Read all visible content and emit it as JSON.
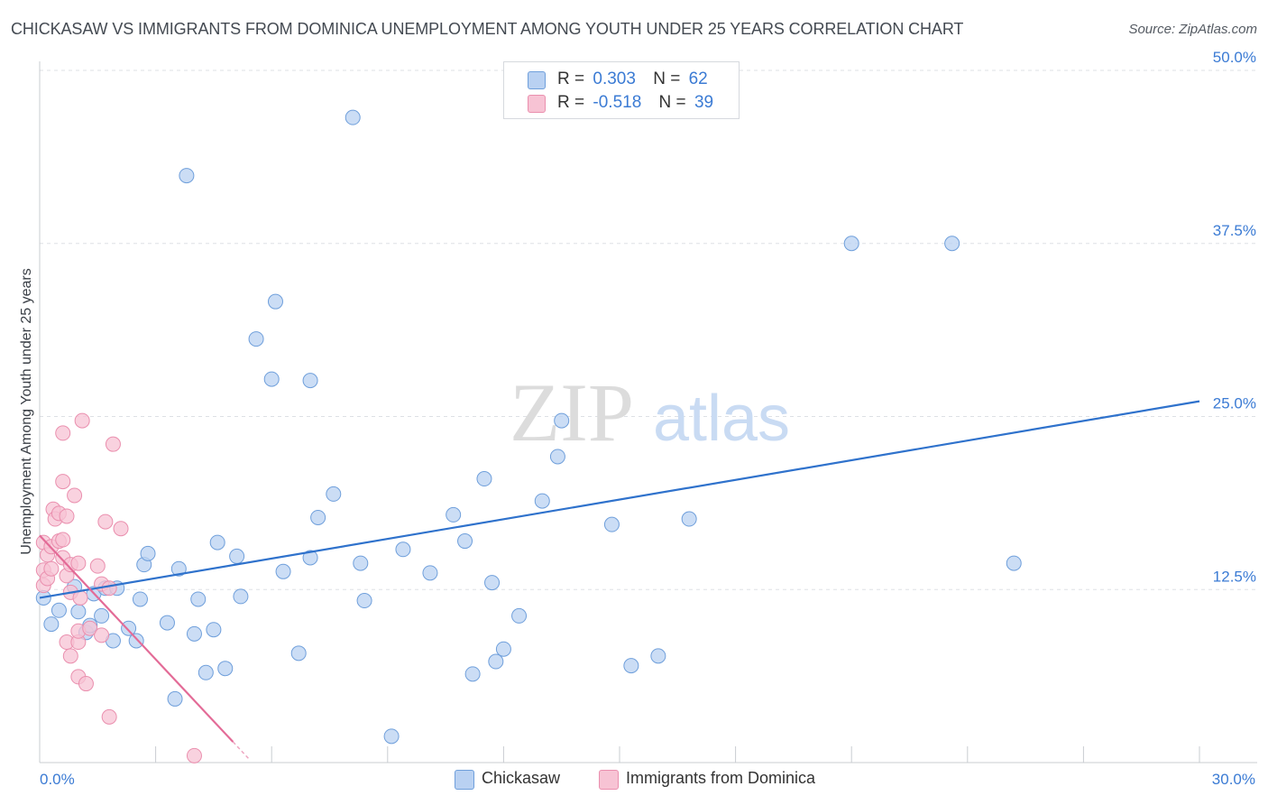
{
  "title": "CHICKASAW VS IMMIGRANTS FROM DOMINICA UNEMPLOYMENT AMONG YOUTH UNDER 25 YEARS CORRELATION CHART",
  "source": "Source: ZipAtlas.com",
  "watermark": {
    "zip": "ZIP",
    "atlas": "atlas"
  },
  "legend": {
    "series1": {
      "r_label": "R =",
      "r_value": "0.303",
      "n_label": "N =",
      "n_value": "62"
    },
    "series2": {
      "r_label": "R =",
      "r_value": "-0.518",
      "n_label": "N =",
      "n_value": "39"
    }
  },
  "bottom_legend": {
    "series1": "Chickasaw",
    "series2": "Immigrants from Dominica"
  },
  "chart_data": {
    "type": "scatter",
    "title": "CHICKASAW VS IMMIGRANTS FROM DOMINICA UNEMPLOYMENT AMONG YOUTH UNDER 25 YEARS CORRELATION CHART",
    "xlabel": "",
    "ylabel": "Unemployment Among Youth under 25 years",
    "xlim": [
      0,
      30
    ],
    "ylim": [
      0,
      50
    ],
    "x_tick_labels": [
      {
        "value": 0,
        "label": "0.0%"
      },
      {
        "value": 30,
        "label": "30.0%"
      }
    ],
    "y_tick_labels": [
      {
        "value": 12.5,
        "label": "12.5%"
      },
      {
        "value": 25,
        "label": "25.0%"
      },
      {
        "value": 37.5,
        "label": "37.5%"
      },
      {
        "value": 50,
        "label": "50.0%"
      }
    ],
    "grid": true,
    "colors": {
      "series1_fill": "#b9d1f2",
      "series1_stroke": "#6f9fdb",
      "series1_line": "#2f72cc",
      "series2_fill": "#f7c3d4",
      "series2_stroke": "#ea8fae",
      "series2_line": "#e36b97",
      "axis_text": "#3b7bd4",
      "grid": "#dde0e5"
    },
    "series": [
      {
        "name": "Chickasaw",
        "r": 0.303,
        "n": 62,
        "trend": {
          "x": [
            0,
            30
          ],
          "y": [
            11.9,
            26.1
          ]
        },
        "points": [
          [
            0.1,
            11.9
          ],
          [
            0.3,
            10.0
          ],
          [
            0.5,
            11.0
          ],
          [
            0.9,
            12.7
          ],
          [
            1.0,
            10.9
          ],
          [
            1.2,
            9.4
          ],
          [
            1.3,
            9.9
          ],
          [
            1.4,
            12.2
          ],
          [
            1.6,
            10.6
          ],
          [
            1.7,
            12.6
          ],
          [
            1.9,
            8.8
          ],
          [
            2.0,
            12.6
          ],
          [
            2.3,
            9.7
          ],
          [
            2.5,
            8.8
          ],
          [
            2.6,
            11.8
          ],
          [
            2.7,
            14.3
          ],
          [
            2.8,
            15.1
          ],
          [
            3.3,
            10.1
          ],
          [
            3.5,
            4.6
          ],
          [
            3.6,
            14.0
          ],
          [
            3.8,
            42.4
          ],
          [
            4.0,
            9.3
          ],
          [
            4.1,
            11.8
          ],
          [
            4.3,
            6.5
          ],
          [
            4.5,
            9.6
          ],
          [
            4.6,
            15.9
          ],
          [
            4.8,
            6.8
          ],
          [
            5.1,
            14.9
          ],
          [
            5.2,
            12.0
          ],
          [
            5.6,
            30.6
          ],
          [
            6.0,
            27.7
          ],
          [
            6.1,
            33.3
          ],
          [
            6.3,
            13.8
          ],
          [
            6.7,
            7.9
          ],
          [
            7.0,
            14.8
          ],
          [
            7.0,
            27.6
          ],
          [
            7.2,
            17.7
          ],
          [
            7.6,
            19.4
          ],
          [
            8.1,
            46.6
          ],
          [
            8.3,
            14.4
          ],
          [
            8.4,
            11.7
          ],
          [
            9.1,
            1.9
          ],
          [
            9.4,
            15.4
          ],
          [
            10.1,
            13.7
          ],
          [
            10.7,
            17.9
          ],
          [
            11.0,
            16.0
          ],
          [
            11.2,
            6.4
          ],
          [
            11.5,
            20.5
          ],
          [
            11.7,
            13.0
          ],
          [
            11.8,
            7.3
          ],
          [
            12.0,
            8.2
          ],
          [
            12.4,
            10.6
          ],
          [
            13.0,
            18.9
          ],
          [
            13.4,
            22.1
          ],
          [
            13.5,
            24.7
          ],
          [
            14.8,
            17.2
          ],
          [
            15.3,
            7.0
          ],
          [
            16.0,
            7.7
          ],
          [
            16.8,
            17.6
          ],
          [
            21.0,
            37.5
          ],
          [
            23.6,
            37.5
          ],
          [
            25.2,
            14.4
          ]
        ]
      },
      {
        "name": "Immigrants from Dominica",
        "r": -0.518,
        "n": 39,
        "trend": {
          "x": [
            0,
            5.0
          ],
          "y": [
            16.4,
            1.5
          ]
        },
        "trend_dashed_extension": {
          "x": [
            5.0,
            5.4
          ],
          "y": [
            1.5,
            0.3
          ]
        },
        "points": [
          [
            0.1,
            12.8
          ],
          [
            0.1,
            13.9
          ],
          [
            0.1,
            15.9
          ],
          [
            0.2,
            15.0
          ],
          [
            0.2,
            13.3
          ],
          [
            0.3,
            15.6
          ],
          [
            0.3,
            14.0
          ],
          [
            0.35,
            18.3
          ],
          [
            0.4,
            17.6
          ],
          [
            0.5,
            16.0
          ],
          [
            0.5,
            18.0
          ],
          [
            0.6,
            14.8
          ],
          [
            0.6,
            20.3
          ],
          [
            0.6,
            16.1
          ],
          [
            0.6,
            23.8
          ],
          [
            0.7,
            17.8
          ],
          [
            0.7,
            8.7
          ],
          [
            0.7,
            13.5
          ],
          [
            0.8,
            14.3
          ],
          [
            0.8,
            12.3
          ],
          [
            0.8,
            7.7
          ],
          [
            0.9,
            19.3
          ],
          [
            1.0,
            6.2
          ],
          [
            1.0,
            8.7
          ],
          [
            1.0,
            9.5
          ],
          [
            1.0,
            14.4
          ],
          [
            1.05,
            11.9
          ],
          [
            1.1,
            24.7
          ],
          [
            1.2,
            5.7
          ],
          [
            1.3,
            9.7
          ],
          [
            1.5,
            14.2
          ],
          [
            1.6,
            9.2
          ],
          [
            1.6,
            12.9
          ],
          [
            1.7,
            17.4
          ],
          [
            1.8,
            12.6
          ],
          [
            1.8,
            3.3
          ],
          [
            1.9,
            23.0
          ],
          [
            2.1,
            16.9
          ],
          [
            4.0,
            0.5
          ]
        ]
      }
    ]
  }
}
